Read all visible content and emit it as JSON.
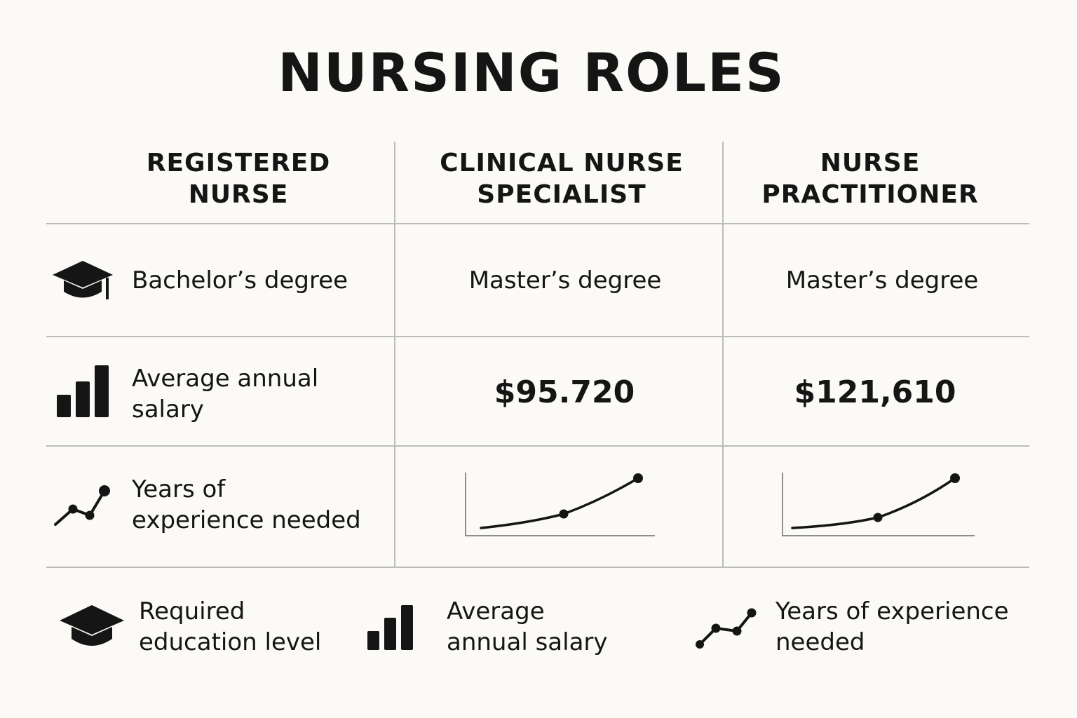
{
  "title": "NURSING ROLES",
  "columns": [
    {
      "header": "REGISTERED\nNURSE"
    },
    {
      "header": "CLINICAL NURSE\nSPECIALIST"
    },
    {
      "header": "NURSE\nPRACTITIONER"
    }
  ],
  "rows": {
    "education": {
      "icon": "graduation-cap-icon",
      "label": "Bachelor’s degree",
      "clinical_nurse_specialist": "Master’s degree",
      "nurse_practitioner": "Master’s degree"
    },
    "salary": {
      "icon": "bar-chart-icon",
      "label": "Average annual\nsalary",
      "clinical_nurse_specialist": "$95.720",
      "nurse_practitioner": "$121,610"
    },
    "experience": {
      "icon": "trend-line-icon",
      "label": "Years of\nexperience needed"
    }
  },
  "legend": [
    {
      "icon": "graduation-cap-icon",
      "label": "Required\neducation level"
    },
    {
      "icon": "bar-chart-icon",
      "label": "Average\nannual salary"
    },
    {
      "icon": "trend-line-icon",
      "label": "Years of experience\nneeded"
    }
  ],
  "colors": {
    "background": "#fbfaf6",
    "text": "#151515",
    "grid": "#bcbcbc"
  }
}
